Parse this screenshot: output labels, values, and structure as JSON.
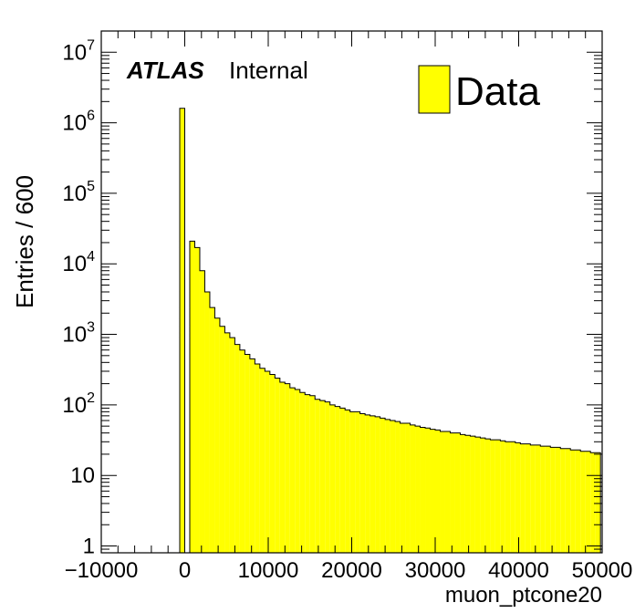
{
  "chart_data": {
    "type": "bar",
    "style": "histogram",
    "xlabel": "muon_ptcone20",
    "ylabel": "Entries / 600",
    "x_ticks": [
      -10000,
      0,
      10000,
      20000,
      30000,
      40000,
      50000
    ],
    "x_tick_labels": [
      "−10000",
      "0",
      "10000",
      "20000",
      "30000",
      "40000",
      "50000"
    ],
    "xlim": [
      -10000,
      50000
    ],
    "ylim": [
      0.8,
      20000000
    ],
    "y_scale": "log",
    "y_tick_labels": [
      {
        "value": 1,
        "base": "1",
        "exp": ""
      },
      {
        "value": 10,
        "base": "10",
        "exp": ""
      },
      {
        "value": 100,
        "base": "10",
        "exp": "2"
      },
      {
        "value": 1000,
        "base": "10",
        "exp": "3"
      },
      {
        "value": 10000,
        "base": "10",
        "exp": "4"
      },
      {
        "value": 100000,
        "base": "10",
        "exp": "5"
      },
      {
        "value": 1000000,
        "base": "10",
        "exp": "6"
      },
      {
        "value": 10000000,
        "base": "10",
        "exp": "7"
      }
    ],
    "bin_width": 600,
    "bins_start": -600,
    "bin_values": [
      1600000,
      0,
      21000,
      17000,
      8000,
      4000,
      2400,
      1700,
      1300,
      1050,
      900,
      720,
      600,
      520,
      450,
      380,
      330,
      300,
      270,
      240,
      210,
      200,
      175,
      165,
      150,
      140,
      135,
      120,
      115,
      110,
      100,
      95,
      90,
      85,
      80,
      80,
      75,
      72,
      70,
      68,
      65,
      62,
      60,
      58,
      55,
      55,
      52,
      50,
      48,
      47,
      45,
      44,
      42,
      42,
      40,
      40,
      38,
      37,
      36,
      35,
      34,
      33,
      32,
      32,
      31,
      30,
      30,
      29,
      28,
      28,
      27,
      27,
      26,
      26,
      25,
      25,
      24,
      24,
      23,
      23,
      22,
      22,
      21,
      21
    ],
    "series": [
      {
        "name": "Data",
        "color": "#ffff00",
        "edge_color": "#000000"
      }
    ],
    "legend": {
      "position": "top-right",
      "label": "Data"
    },
    "grid": false
  },
  "atlas_label": {
    "bold": "ATLAS",
    "normal": "Internal"
  }
}
